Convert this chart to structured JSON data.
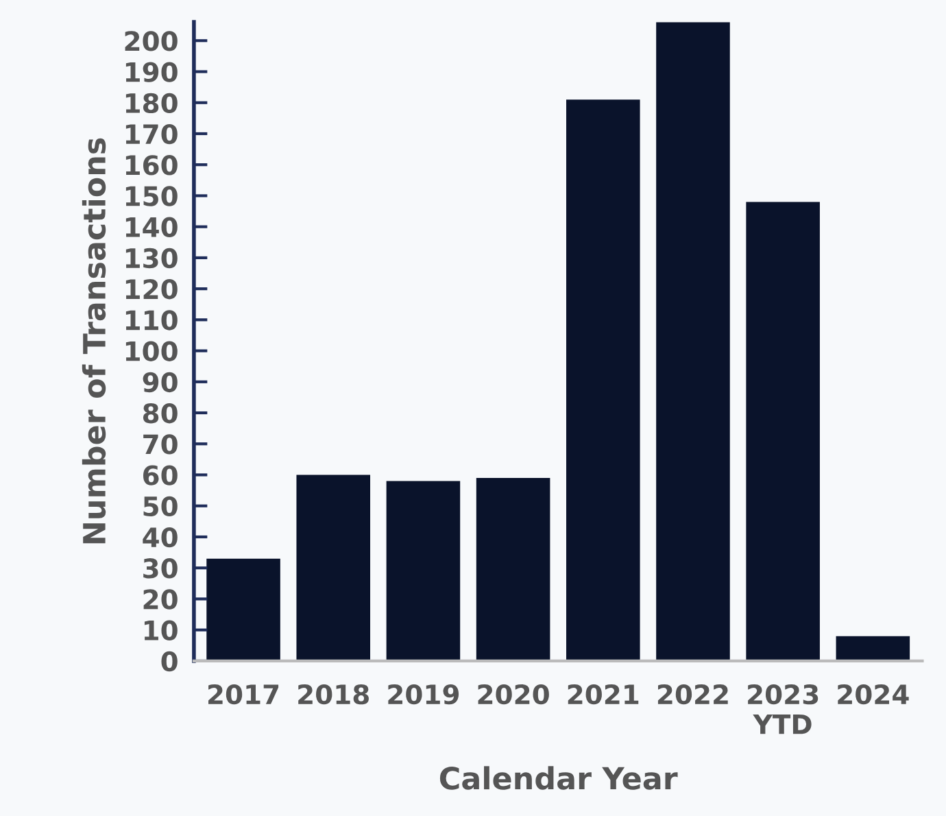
{
  "chart_data": {
    "type": "bar",
    "xlabel": "Calendar Year",
    "ylabel": "Number of Transactions",
    "categories": [
      "2017",
      "2018",
      "2019",
      "2020",
      "2021",
      "2022",
      "2023\nYTD",
      "2024"
    ],
    "values": [
      33,
      60,
      58,
      59,
      181,
      206,
      148,
      8
    ],
    "color": "#0a132b",
    "ylim": [
      0,
      206
    ],
    "yticks": [
      0,
      10,
      20,
      30,
      40,
      50,
      60,
      70,
      80,
      90,
      100,
      110,
      120,
      130,
      140,
      150,
      160,
      170,
      180,
      190,
      200
    ],
    "grid": false,
    "legend": false
  }
}
